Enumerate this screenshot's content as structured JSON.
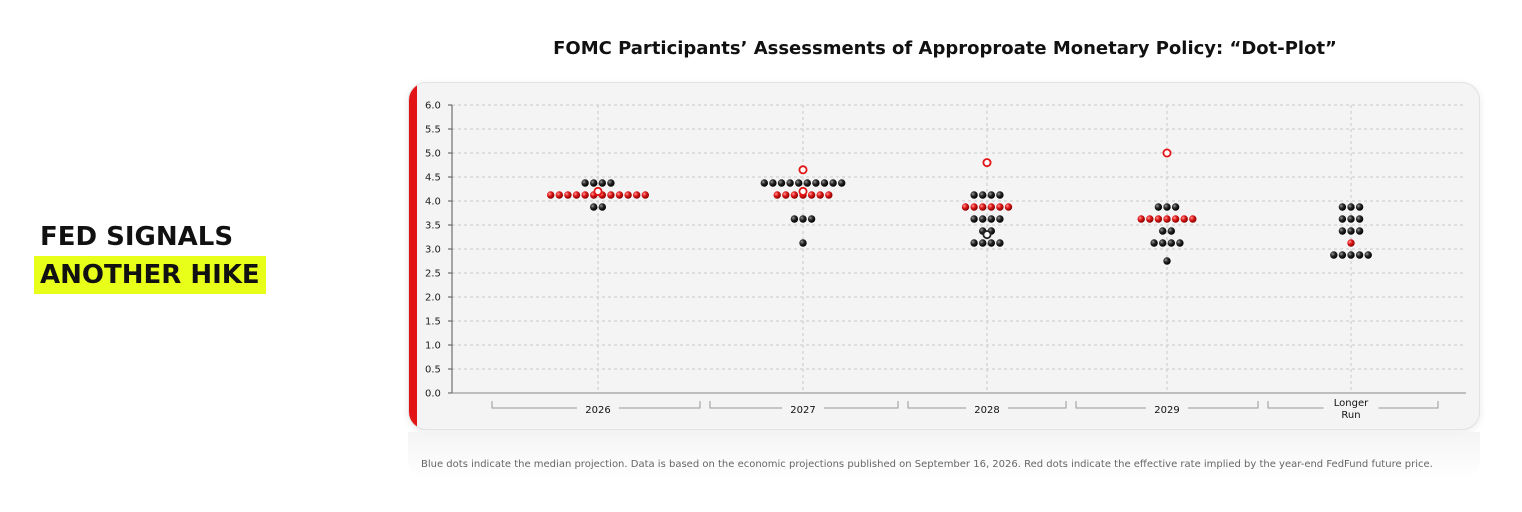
{
  "headline": {
    "line1": "FED SIGNALS",
    "line2": "ANOTHER HIKE"
  },
  "chart_data": {
    "type": "scatter",
    "title": "FOMC Participants’ Assessments of Approproate Monetary Policy: “Dot-Plot”",
    "ylim": [
      0,
      6
    ],
    "yticks": [
      "0.0",
      "0.5",
      "1.0",
      "1.5",
      "2.0",
      "2.5",
      "3.0",
      "3.5",
      "4.0",
      "4.5",
      "5.0",
      "5.5",
      "6.0"
    ],
    "categories": [
      "2026",
      "2027",
      "2028",
      "2029",
      "Longer Run"
    ],
    "category_label_lines": [
      [
        "2026"
      ],
      [
        "2027"
      ],
      [
        "2028"
      ],
      [
        "2029"
      ],
      [
        "Longer",
        "Run"
      ]
    ],
    "grid": true,
    "colors": {
      "participant_dot": "#1a1a1a",
      "highlight_dot": "#e31414",
      "open_marker": "#e31414",
      "accent": "#e31414"
    },
    "series": [
      {
        "category": "2026",
        "levels": [
          {
            "y": 4.375,
            "black": 4,
            "red": 0
          },
          {
            "y": 4.125,
            "black": 0,
            "red": 12
          },
          {
            "y": 3.875,
            "black": 2,
            "red": 0
          }
        ],
        "open_markers": [
          4.2
        ]
      },
      {
        "category": "2027",
        "levels": [
          {
            "y": 4.375,
            "black": 10,
            "red": 0
          },
          {
            "y": 4.125,
            "black": 0,
            "red": 7
          },
          {
            "y": 3.625,
            "black": 3,
            "red": 0
          },
          {
            "y": 3.125,
            "black": 1,
            "red": 0
          }
        ],
        "open_markers": [
          4.65,
          4.2
        ]
      },
      {
        "category": "2028",
        "levels": [
          {
            "y": 4.125,
            "black": 4,
            "red": 0
          },
          {
            "y": 3.875,
            "black": 0,
            "red": 6
          },
          {
            "y": 3.625,
            "black": 4,
            "red": 0
          },
          {
            "y": 3.375,
            "black": 2,
            "red": 0
          },
          {
            "y": 3.125,
            "black": 4,
            "red": 0
          }
        ],
        "open_markers": [
          4.8
        ],
        "median_marker": 3.3
      },
      {
        "category": "2029",
        "levels": [
          {
            "y": 3.875,
            "black": 3,
            "red": 0
          },
          {
            "y": 3.625,
            "black": 0,
            "red": 7
          },
          {
            "y": 3.375,
            "black": 2,
            "red": 0
          },
          {
            "y": 3.125,
            "black": 4,
            "red": 0
          },
          {
            "y": 2.75,
            "black": 1,
            "red": 0
          }
        ],
        "open_markers": [
          5.0
        ]
      },
      {
        "category": "Longer Run",
        "levels": [
          {
            "y": 3.875,
            "black": 3,
            "red": 0
          },
          {
            "y": 3.625,
            "black": 3,
            "red": 0
          },
          {
            "y": 3.375,
            "black": 3,
            "red": 0
          },
          {
            "y": 3.125,
            "black": 0,
            "red": 1
          },
          {
            "y": 2.875,
            "black": 5,
            "red": 0
          }
        ],
        "open_markers": []
      }
    ]
  },
  "footnote": "Blue dots indicate the median projection. Data is based on the economic projections published on September 16, 2026. Red dots indicate the effective rate implied by the year-end FedFund future price."
}
